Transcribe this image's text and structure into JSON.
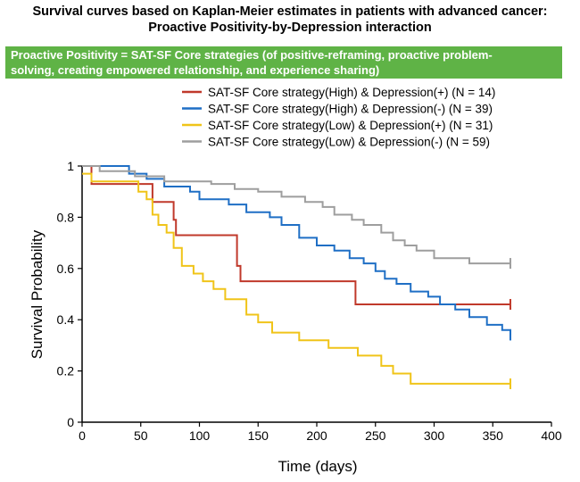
{
  "title_line1": "Survival curves based on Kaplan-Meier estimates in patients with advanced cancer:",
  "title_line2": "Proactive Positivity-by-Depression interaction",
  "banner_line1": "Proactive Positivity = SAT-SF Core strategies (of positive-reframing, proactive problem-",
  "banner_line2": "solving, creating empowered relationship, and experience sharing)",
  "colors": {
    "banner": "#5fb346",
    "axis": "#000000"
  },
  "chart_data": {
    "type": "line",
    "title": "",
    "xlabel": "Time (days)",
    "ylabel": "Survival Probability",
    "xlim": [
      0,
      400
    ],
    "ylim": [
      0,
      1
    ],
    "xticks": [
      0,
      50,
      100,
      150,
      200,
      250,
      300,
      350,
      400
    ],
    "yticks": [
      0,
      0.2,
      0.4,
      0.6,
      0.8,
      1
    ],
    "grid": false,
    "legend_position": "top-right",
    "series": [
      {
        "name": "SAT-SF Core strategy(High) & Depression(+) (N = 14)",
        "color": "#c0392b",
        "points": [
          [
            0,
            1
          ],
          [
            8,
            1
          ],
          [
            8,
            0.93
          ],
          [
            60,
            0.93
          ],
          [
            60,
            0.86
          ],
          [
            78,
            0.86
          ],
          [
            78,
            0.79
          ],
          [
            80,
            0.79
          ],
          [
            80,
            0.73
          ],
          [
            132,
            0.73
          ],
          [
            132,
            0.61
          ],
          [
            135,
            0.61
          ],
          [
            135,
            0.55
          ],
          [
            233,
            0.55
          ],
          [
            233,
            0.46
          ],
          [
            365,
            0.46
          ]
        ]
      },
      {
        "name": "SAT-SF Core strategy(High) & Depression(-) (N = 39)",
        "color": "#1f6fc5",
        "points": [
          [
            0,
            1
          ],
          [
            40,
            1
          ],
          [
            40,
            0.97
          ],
          [
            55,
            0.97
          ],
          [
            55,
            0.95
          ],
          [
            70,
            0.95
          ],
          [
            70,
            0.92
          ],
          [
            92,
            0.92
          ],
          [
            92,
            0.9
          ],
          [
            100,
            0.9
          ],
          [
            100,
            0.87
          ],
          [
            125,
            0.87
          ],
          [
            125,
            0.85
          ],
          [
            140,
            0.85
          ],
          [
            140,
            0.82
          ],
          [
            160,
            0.82
          ],
          [
            160,
            0.8
          ],
          [
            170,
            0.8
          ],
          [
            170,
            0.77
          ],
          [
            185,
            0.77
          ],
          [
            185,
            0.72
          ],
          [
            200,
            0.72
          ],
          [
            200,
            0.69
          ],
          [
            215,
            0.69
          ],
          [
            215,
            0.67
          ],
          [
            228,
            0.67
          ],
          [
            228,
            0.64
          ],
          [
            240,
            0.64
          ],
          [
            240,
            0.62
          ],
          [
            250,
            0.62
          ],
          [
            250,
            0.59
          ],
          [
            258,
            0.59
          ],
          [
            258,
            0.56
          ],
          [
            268,
            0.56
          ],
          [
            268,
            0.54
          ],
          [
            280,
            0.54
          ],
          [
            280,
            0.51
          ],
          [
            295,
            0.51
          ],
          [
            295,
            0.49
          ],
          [
            305,
            0.49
          ],
          [
            305,
            0.46
          ],
          [
            318,
            0.46
          ],
          [
            318,
            0.44
          ],
          [
            330,
            0.44
          ],
          [
            330,
            0.41
          ],
          [
            345,
            0.41
          ],
          [
            345,
            0.38
          ],
          [
            358,
            0.38
          ],
          [
            358,
            0.36
          ],
          [
            365,
            0.36
          ],
          [
            365,
            0.34
          ]
        ]
      },
      {
        "name": "SAT-SF Core strategy(Low) & Depression(+) (N = 31)",
        "color": "#f0c419",
        "points": [
          [
            0,
            0.97
          ],
          [
            8,
            0.97
          ],
          [
            8,
            0.94
          ],
          [
            48,
            0.94
          ],
          [
            48,
            0.9
          ],
          [
            55,
            0.9
          ],
          [
            55,
            0.87
          ],
          [
            60,
            0.87
          ],
          [
            60,
            0.81
          ],
          [
            65,
            0.81
          ],
          [
            65,
            0.77
          ],
          [
            72,
            0.77
          ],
          [
            72,
            0.74
          ],
          [
            78,
            0.74
          ],
          [
            78,
            0.68
          ],
          [
            85,
            0.68
          ],
          [
            85,
            0.61
          ],
          [
            95,
            0.61
          ],
          [
            95,
            0.58
          ],
          [
            103,
            0.58
          ],
          [
            103,
            0.55
          ],
          [
            112,
            0.55
          ],
          [
            112,
            0.52
          ],
          [
            122,
            0.52
          ],
          [
            122,
            0.48
          ],
          [
            140,
            0.48
          ],
          [
            140,
            0.42
          ],
          [
            150,
            0.42
          ],
          [
            150,
            0.39
          ],
          [
            162,
            0.39
          ],
          [
            162,
            0.35
          ],
          [
            185,
            0.35
          ],
          [
            185,
            0.32
          ],
          [
            210,
            0.32
          ],
          [
            210,
            0.29
          ],
          [
            235,
            0.29
          ],
          [
            235,
            0.26
          ],
          [
            255,
            0.26
          ],
          [
            255,
            0.22
          ],
          [
            265,
            0.22
          ],
          [
            265,
            0.19
          ],
          [
            280,
            0.19
          ],
          [
            280,
            0.15
          ],
          [
            365,
            0.15
          ]
        ]
      },
      {
        "name": "SAT-SF Core strategy(Low) & Depression(-) (N = 59)",
        "color": "#9e9e9e",
        "points": [
          [
            0,
            1
          ],
          [
            15,
            1
          ],
          [
            15,
            0.98
          ],
          [
            45,
            0.98
          ],
          [
            45,
            0.96
          ],
          [
            70,
            0.96
          ],
          [
            70,
            0.94
          ],
          [
            110,
            0.94
          ],
          [
            110,
            0.93
          ],
          [
            130,
            0.93
          ],
          [
            130,
            0.91
          ],
          [
            150,
            0.91
          ],
          [
            150,
            0.9
          ],
          [
            170,
            0.9
          ],
          [
            170,
            0.88
          ],
          [
            190,
            0.88
          ],
          [
            190,
            0.86
          ],
          [
            205,
            0.86
          ],
          [
            205,
            0.84
          ],
          [
            215,
            0.84
          ],
          [
            215,
            0.81
          ],
          [
            230,
            0.81
          ],
          [
            230,
            0.79
          ],
          [
            240,
            0.79
          ],
          [
            240,
            0.77
          ],
          [
            255,
            0.77
          ],
          [
            255,
            0.74
          ],
          [
            265,
            0.74
          ],
          [
            265,
            0.71
          ],
          [
            275,
            0.71
          ],
          [
            275,
            0.69
          ],
          [
            285,
            0.69
          ],
          [
            285,
            0.67
          ],
          [
            300,
            0.67
          ],
          [
            300,
            0.64
          ],
          [
            330,
            0.64
          ],
          [
            330,
            0.62
          ],
          [
            365,
            0.62
          ]
        ]
      }
    ]
  }
}
